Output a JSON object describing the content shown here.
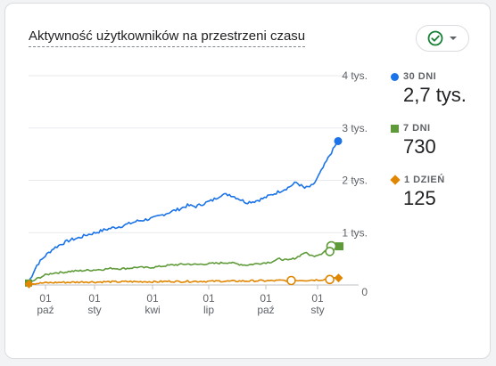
{
  "card": {
    "title": "Aktywność użytkowników na przestrzeni czasu"
  },
  "status_button": {
    "icon": "check-circle-icon",
    "chevron": "chevron-down-icon",
    "icon_color": "#188038"
  },
  "legend": [
    {
      "label": "30 DNI",
      "value": "2,7 tys.",
      "marker": "dot",
      "color": "#1a73e8"
    },
    {
      "label": "7 DNI",
      "value": "730",
      "marker": "square",
      "color": "#5e9b38"
    },
    {
      "label": "1 DZIEŃ",
      "value": "125",
      "marker": "diamond",
      "color": "#e08600"
    }
  ],
  "chart_data": {
    "type": "line",
    "y_ticks": [
      "0",
      "1 tys.",
      "2 tys.",
      "3 tys.",
      "4 tys."
    ],
    "ylim": [
      0,
      4000
    ],
    "x_ticks": [
      {
        "day": "01",
        "month": "paź"
      },
      {
        "day": "01",
        "month": "sty"
      },
      {
        "day": "01",
        "month": "kwi"
      },
      {
        "day": "01",
        "month": "lip"
      },
      {
        "day": "01",
        "month": "paź"
      },
      {
        "day": "01",
        "month": "sty"
      }
    ],
    "grid": true,
    "series": [
      {
        "name": "30 DNI",
        "color": "#1a73e8",
        "points": [
          [
            0,
            50
          ],
          [
            5,
            380
          ],
          [
            10,
            560
          ],
          [
            15,
            700
          ],
          [
            20,
            790
          ],
          [
            25,
            860
          ],
          [
            30,
            900
          ],
          [
            35,
            960
          ],
          [
            40,
            1000
          ],
          [
            45,
            1050
          ],
          [
            50,
            1090
          ],
          [
            55,
            1120
          ],
          [
            60,
            1170
          ],
          [
            65,
            1220
          ],
          [
            70,
            1250
          ],
          [
            75,
            1280
          ],
          [
            80,
            1340
          ],
          [
            85,
            1400
          ],
          [
            90,
            1450
          ],
          [
            95,
            1520
          ],
          [
            100,
            1500
          ],
          [
            105,
            1560
          ],
          [
            110,
            1620
          ],
          [
            115,
            1720
          ],
          [
            120,
            1730
          ],
          [
            125,
            1660
          ],
          [
            130,
            1580
          ],
          [
            135,
            1600
          ],
          [
            140,
            1650
          ],
          [
            145,
            1720
          ],
          [
            150,
            1790
          ],
          [
            155,
            1860
          ],
          [
            160,
            1960
          ],
          [
            165,
            1850
          ],
          [
            170,
            1900
          ],
          [
            175,
            2180
          ],
          [
            180,
            2480
          ],
          [
            185,
            2750
          ]
        ]
      },
      {
        "name": "7 DNI",
        "color": "#5e9b38",
        "points": [
          [
            0,
            20
          ],
          [
            5,
            120
          ],
          [
            10,
            190
          ],
          [
            15,
            230
          ],
          [
            20,
            240
          ],
          [
            25,
            260
          ],
          [
            30,
            270
          ],
          [
            35,
            280
          ],
          [
            40,
            290
          ],
          [
            45,
            300
          ],
          [
            50,
            320
          ],
          [
            55,
            310
          ],
          [
            60,
            320
          ],
          [
            65,
            340
          ],
          [
            70,
            330
          ],
          [
            75,
            340
          ],
          [
            80,
            360
          ],
          [
            85,
            380
          ],
          [
            90,
            390
          ],
          [
            95,
            400
          ],
          [
            100,
            390
          ],
          [
            105,
            400
          ],
          [
            110,
            410
          ],
          [
            115,
            420
          ],
          [
            120,
            430
          ],
          [
            125,
            400
          ],
          [
            130,
            380
          ],
          [
            135,
            400
          ],
          [
            140,
            420
          ],
          [
            145,
            440
          ],
          [
            150,
            500
          ],
          [
            155,
            470
          ],
          [
            160,
            520
          ],
          [
            165,
            620
          ],
          [
            170,
            550
          ],
          [
            175,
            600
          ],
          [
            180,
            720
          ],
          [
            185,
            730
          ]
        ]
      },
      {
        "name": "1 DZIEŃ",
        "color": "#e08600",
        "points": [
          [
            0,
            20
          ],
          [
            5,
            30
          ],
          [
            10,
            40
          ],
          [
            15,
            45
          ],
          [
            20,
            50
          ],
          [
            25,
            50
          ],
          [
            30,
            55
          ],
          [
            35,
            60
          ],
          [
            40,
            55
          ],
          [
            45,
            60
          ],
          [
            50,
            60
          ],
          [
            55,
            60
          ],
          [
            60,
            65
          ],
          [
            65,
            60
          ],
          [
            70,
            65
          ],
          [
            75,
            60
          ],
          [
            80,
            65
          ],
          [
            85,
            70
          ],
          [
            90,
            65
          ],
          [
            95,
            70
          ],
          [
            100,
            70
          ],
          [
            105,
            70
          ],
          [
            110,
            70
          ],
          [
            115,
            75
          ],
          [
            120,
            70
          ],
          [
            125,
            75
          ],
          [
            130,
            75
          ],
          [
            135,
            80
          ],
          [
            140,
            80
          ],
          [
            145,
            80
          ],
          [
            150,
            85
          ],
          [
            155,
            85
          ],
          [
            160,
            90
          ],
          [
            165,
            90
          ],
          [
            170,
            95
          ],
          [
            175,
            100
          ],
          [
            180,
            120
          ],
          [
            185,
            125
          ]
        ]
      }
    ]
  }
}
